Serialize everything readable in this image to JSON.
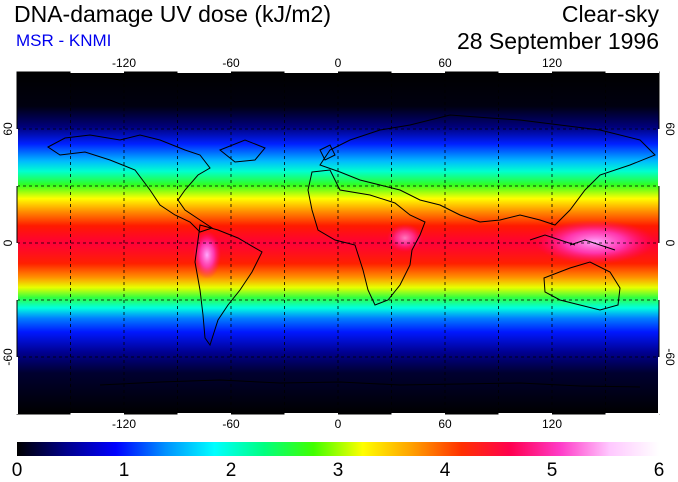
{
  "header": {
    "title": "DNA-damage UV dose (kJ/m2)",
    "subtitle": "MSR - KNMI",
    "condition": "Clear-sky",
    "date": "28 September 1996"
  },
  "map": {
    "longitude_labels": [
      "-120",
      "-60",
      "0",
      "60",
      "120"
    ],
    "latitude_labels": [
      "60",
      "0",
      "-60"
    ],
    "graticule_longitudes": [
      -150,
      -120,
      -90,
      -60,
      -30,
      0,
      30,
      60,
      90,
      120,
      150
    ],
    "graticule_latitudes": [
      -60,
      -30,
      0,
      30,
      60
    ]
  },
  "colorbar": {
    "tick_labels": [
      "0",
      "1",
      "2",
      "3",
      "4",
      "5",
      "6"
    ],
    "min": 0,
    "max": 6,
    "colors": [
      "#000000",
      "#00008b",
      "#0000ff",
      "#0090ff",
      "#00ffff",
      "#00ff80",
      "#40ff00",
      "#ffff00",
      "#ffa000",
      "#ff3000",
      "#ff0050",
      "#ff3cc8",
      "#ffc8ff",
      "#ffffff"
    ]
  }
}
